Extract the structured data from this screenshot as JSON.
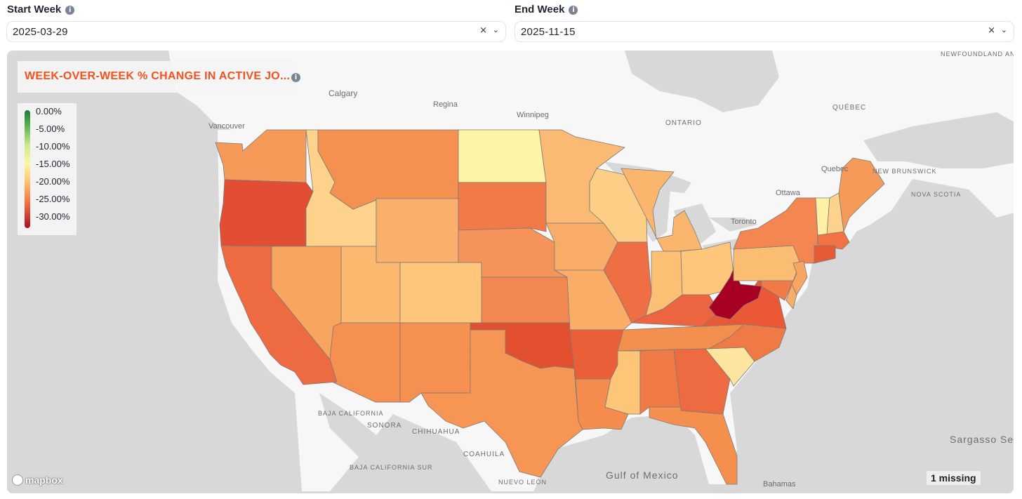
{
  "filters": {
    "start": {
      "label": "Start Week",
      "value": "2025-03-29",
      "clear": "×",
      "chevron": "⌄"
    },
    "end": {
      "label": "End Week",
      "value": "2025-11-15",
      "clear": "×",
      "chevron": "⌄"
    }
  },
  "info_glyph": "i",
  "legend": {
    "title": "WEEK-OVER-WEEK % CHANGE IN ACTIVE JO...",
    "title_color": "#f4511e",
    "ticks": [
      "0.00%",
      "-5.00%",
      "-10.00%",
      "-15.00%",
      "-20.00%",
      "-25.00%",
      "-30.00%"
    ],
    "scale_colors": [
      "#1a7a3c",
      "#66bb55",
      "#cfe98a",
      "#fff6a5",
      "#fdc670",
      "#f5733f",
      "#b20a28"
    ]
  },
  "map": {
    "water_color": "#d8d8d8",
    "land_color": "#f7f7f7",
    "place_labels": {
      "calgary": "Calgary",
      "regina": "Regina",
      "winnipeg": "Winnipeg",
      "vancouver": "Vancouver",
      "ontario": "ONTARIO",
      "quebec_region": "QUÉBEC",
      "quebec_city": "Quebec",
      "new_brunswick": "NEW BRUNSWICK",
      "nova_scotia": "NOVA SCOTIA",
      "newfoundland": "NEWFOUNDLAND AND LABRADOR",
      "ottawa": "Ottawa",
      "toronto": "Toronto",
      "sonora": "SONORA",
      "chihuahua": "CHIHUAHUA",
      "coahuila": "COAHUILA",
      "baja_california": "BAJA CALIFORNIA",
      "baja_california_sur": "BAJA CALIFORNIA SUR",
      "nuevo_leon": "NUEVO LEÓN",
      "gulf": "Gulf of Mexico",
      "sargasso": "Sargasso Sea",
      "bahamas": "Bahamas"
    },
    "states": [
      {
        "id": "WA",
        "color": "#f59a58"
      },
      {
        "id": "OR",
        "color": "#e24e33"
      },
      {
        "id": "CA",
        "color": "#ee6a40"
      },
      {
        "id": "ID",
        "color": "#fdd38b"
      },
      {
        "id": "NV",
        "color": "#f8a55f"
      },
      {
        "id": "MT",
        "color": "#f59050"
      },
      {
        "id": "WY",
        "color": "#f9b06c"
      },
      {
        "id": "UT",
        "color": "#fbb86e"
      },
      {
        "id": "AZ",
        "color": "#f59050"
      },
      {
        "id": "CO",
        "color": "#fdc67a"
      },
      {
        "id": "NM",
        "color": "#f59050"
      },
      {
        "id": "ND",
        "color": "#fdf4a6"
      },
      {
        "id": "SD",
        "color": "#f17b48"
      },
      {
        "id": "NE",
        "color": "#f5935a"
      },
      {
        "id": "KS",
        "color": "#f38752"
      },
      {
        "id": "OK",
        "color": "#e3502f"
      },
      {
        "id": "TX",
        "color": "#f79555"
      },
      {
        "id": "MN",
        "color": "#fbba74"
      },
      {
        "id": "IA",
        "color": "#f9ac68"
      },
      {
        "id": "MO",
        "color": "#f9ad67"
      },
      {
        "id": "AR",
        "color": "#ea5f38"
      },
      {
        "id": "LA",
        "color": "#f58c4d"
      },
      {
        "id": "WI",
        "color": "#fdce86"
      },
      {
        "id": "IL",
        "color": "#ef6e44"
      },
      {
        "id": "MI",
        "color": "#fbb66e"
      },
      {
        "id": "IN",
        "color": "#fcc075"
      },
      {
        "id": "OH",
        "color": "#fdc67a"
      },
      {
        "id": "KY",
        "color": "#ec6540"
      },
      {
        "id": "TN",
        "color": "#f28e4e"
      },
      {
        "id": "MS",
        "color": "#fdc577"
      },
      {
        "id": "AL",
        "color": "#f07a45"
      },
      {
        "id": "GA",
        "color": "#ee6a40"
      },
      {
        "id": "FL",
        "color": "#f58f4e"
      },
      {
        "id": "SC",
        "color": "#fde5a0"
      },
      {
        "id": "NC",
        "color": "#f07a45"
      },
      {
        "id": "VA",
        "color": "#ea5836"
      },
      {
        "id": "WV",
        "color": "#a70025"
      },
      {
        "id": "PA",
        "color": "#fbbd72"
      },
      {
        "id": "NY",
        "color": "#f38651"
      },
      {
        "id": "VT",
        "color": "#fff1a3"
      },
      {
        "id": "NH",
        "color": "#fdd38b"
      },
      {
        "id": "ME",
        "color": "#f59a58"
      },
      {
        "id": "MA",
        "color": "#f27243"
      },
      {
        "id": "CT",
        "color": "#e65a35"
      },
      {
        "id": "NJ",
        "color": "#f8a55f"
      },
      {
        "id": "MD",
        "color": "#f17b48"
      },
      {
        "id": "DE",
        "color": "#f9ad67"
      }
    ],
    "missing_count": "1 missing",
    "attribution": "mapbox"
  }
}
